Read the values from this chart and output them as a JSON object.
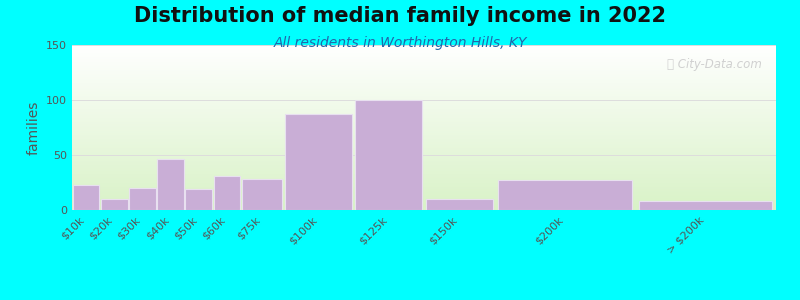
{
  "title": "Distribution of median family income in 2022",
  "subtitle": "All residents in Worthington Hills, KY",
  "ylabel": "families",
  "background_color": "#00FFFF",
  "bar_color": "#c9aed6",
  "bar_edgecolor": "#e8e0f0",
  "categories": [
    "$10k",
    "$20k",
    "$30k",
    "$40k",
    "$50k",
    "$60k",
    "$75k",
    "$100k",
    "$125k",
    "$150k",
    "$200k",
    "> $200k"
  ],
  "values": [
    23,
    10,
    20,
    46,
    19,
    31,
    28,
    87,
    100,
    10,
    27,
    8
  ],
  "bin_edges": [
    0,
    10,
    20,
    30,
    40,
    50,
    60,
    75,
    100,
    125,
    150,
    200,
    250
  ],
  "ylim": [
    0,
    150
  ],
  "yticks": [
    0,
    50,
    100,
    150
  ],
  "watermark": "ⓘ City-Data.com",
  "title_fontsize": 15,
  "subtitle_fontsize": 10,
  "ylabel_fontsize": 10,
  "tick_fontsize": 8,
  "grid_color": "#dddddd",
  "ytick_color": "#555555",
  "xtick_color": "#555555",
  "subtitle_color": "#2266aa",
  "title_color": "#111111",
  "watermark_color": "#cccccc"
}
